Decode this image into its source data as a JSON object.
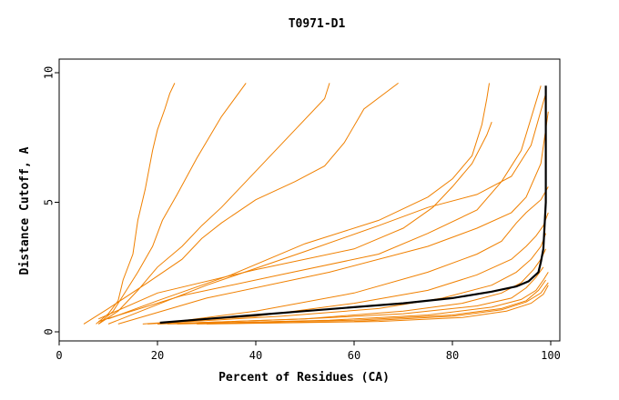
{
  "chart_data": {
    "type": "line",
    "title": "T0971-D1",
    "xlabel": "Percent of Residues (CA)",
    "ylabel": "Distance Cutoff, A",
    "xlim": [
      0,
      100
    ],
    "ylim": [
      0,
      10
    ],
    "x_ticks": [
      "0",
      "20",
      "40",
      "60",
      "80",
      "100"
    ],
    "y_ticks": [
      "0",
      "5",
      "10"
    ],
    "grid": false,
    "legend": "none",
    "colors": {
      "models": "#f08000",
      "highlight": "#000000"
    },
    "series": [
      {
        "x": [
          7.5,
          10,
          12,
          13,
          15,
          16,
          17.5,
          19,
          20,
          21.5,
          22.5,
          23.5
        ],
        "y": [
          0.3,
          0.7,
          1.2,
          2,
          3,
          4.3,
          5.5,
          7,
          7.8,
          8.6,
          9.2,
          9.6
        ]
      },
      {
        "x": [
          8,
          11,
          13,
          16,
          19,
          21,
          24,
          28,
          33,
          38
        ],
        "y": [
          0.3,
          0.8,
          1.4,
          2.3,
          3.3,
          4.3,
          5.3,
          6.7,
          8.3,
          9.6
        ]
      },
      {
        "x": [
          8,
          12,
          16,
          20,
          25,
          29,
          33,
          40,
          48,
          54,
          55
        ],
        "y": [
          0.3,
          0.8,
          1.6,
          2.5,
          3.3,
          4.1,
          4.8,
          6.2,
          7.8,
          9,
          9.6
        ]
      },
      {
        "x": [
          5,
          10,
          18,
          25,
          29,
          33,
          40,
          48,
          54,
          58,
          62,
          69
        ],
        "y": [
          0.3,
          0.9,
          1.9,
          2.8,
          3.6,
          4.2,
          5.1,
          5.8,
          6.4,
          7.3,
          8.6,
          9.6
        ]
      },
      {
        "x": [
          10,
          20,
          35,
          50,
          65,
          75,
          80,
          84,
          86,
          87,
          87.5
        ],
        "y": [
          0.5,
          1.2,
          2.2,
          3.4,
          4.3,
          5.2,
          5.9,
          6.8,
          8,
          9,
          9.6
        ]
      },
      {
        "x": [
          8,
          20,
          40,
          60,
          70,
          76,
          80,
          84,
          87,
          88
        ],
        "y": [
          0.5,
          1.5,
          2.4,
          3.2,
          4,
          4.8,
          5.6,
          6.5,
          7.6,
          8.1
        ]
      },
      {
        "x": [
          8,
          25,
          45,
          65,
          75,
          85,
          90,
          94,
          98
        ],
        "y": [
          0.4,
          1.4,
          2.2,
          3,
          3.8,
          4.7,
          5.8,
          7,
          9.5
        ]
      },
      {
        "x": [
          10,
          30,
          50,
          65,
          75,
          85,
          92,
          96,
          99
        ],
        "y": [
          0.3,
          1.8,
          3.1,
          4.1,
          4.8,
          5.3,
          6,
          7.2,
          9.2
        ]
      },
      {
        "x": [
          12,
          30,
          55,
          75,
          85,
          92,
          95,
          98,
          99.5
        ],
        "y": [
          0.3,
          1.3,
          2.3,
          3.3,
          4,
          4.6,
          5.2,
          6.5,
          8.5
        ]
      },
      {
        "x": [
          20,
          40,
          60,
          75,
          85,
          90,
          93,
          95,
          98,
          99.5
        ],
        "y": [
          0.3,
          0.8,
          1.5,
          2.3,
          3,
          3.5,
          4.2,
          4.6,
          5.1,
          5.6
        ]
      },
      {
        "x": [
          17,
          40,
          60,
          75,
          85,
          92,
          95,
          97,
          98.5,
          99.5
        ],
        "y": [
          0.3,
          0.6,
          1.1,
          1.6,
          2.2,
          2.8,
          3.3,
          3.7,
          4.1,
          4.6
        ]
      },
      {
        "x": [
          18,
          45,
          65,
          78,
          88,
          93,
          96,
          98,
          99
        ],
        "y": [
          0.3,
          0.6,
          0.9,
          1.3,
          1.8,
          2.3,
          2.8,
          3.3,
          3.8
        ]
      },
      {
        "x": [
          20,
          50,
          70,
          82,
          90,
          94,
          96.5,
          98,
          99
        ],
        "y": [
          0.3,
          0.5,
          0.8,
          1.1,
          1.5,
          1.9,
          2.4,
          2.8,
          3.2
        ]
      },
      {
        "x": [
          20,
          50,
          70,
          85,
          92,
          95,
          97,
          98.5
        ],
        "y": [
          0.3,
          0.5,
          0.7,
          1,
          1.3,
          1.7,
          2.1,
          2.5
        ]
      },
      {
        "x": [
          22,
          55,
          75,
          88,
          94,
          97,
          98.5,
          99.5
        ],
        "y": [
          0.3,
          0.45,
          0.65,
          0.95,
          1.25,
          1.6,
          2,
          2.3
        ]
      },
      {
        "x": [
          24,
          60,
          80,
          90,
          95,
          97.5,
          99
        ],
        "y": [
          0.3,
          0.45,
          0.65,
          0.9,
          1.2,
          1.6,
          2
        ]
      },
      {
        "x": [
          28,
          60,
          80,
          90,
          95,
          98,
          99.5
        ],
        "y": [
          0.3,
          0.4,
          0.6,
          0.85,
          1.15,
          1.5,
          1.9
        ]
      },
      {
        "x": [
          30,
          65,
          82,
          91,
          96,
          98.5,
          99.5
        ],
        "y": [
          0.3,
          0.4,
          0.55,
          0.8,
          1.1,
          1.45,
          1.8
        ]
      }
    ],
    "highlight_series": {
      "x": [
        20.5,
        30,
        40,
        50,
        60,
        70,
        80,
        88,
        93,
        95.5,
        97.5,
        98,
        98.5,
        99,
        99
      ],
      "y": [
        0.35,
        0.5,
        0.65,
        0.8,
        0.95,
        1.1,
        1.3,
        1.55,
        1.75,
        1.95,
        2.3,
        2.7,
        3.2,
        5,
        9.5
      ]
    }
  }
}
